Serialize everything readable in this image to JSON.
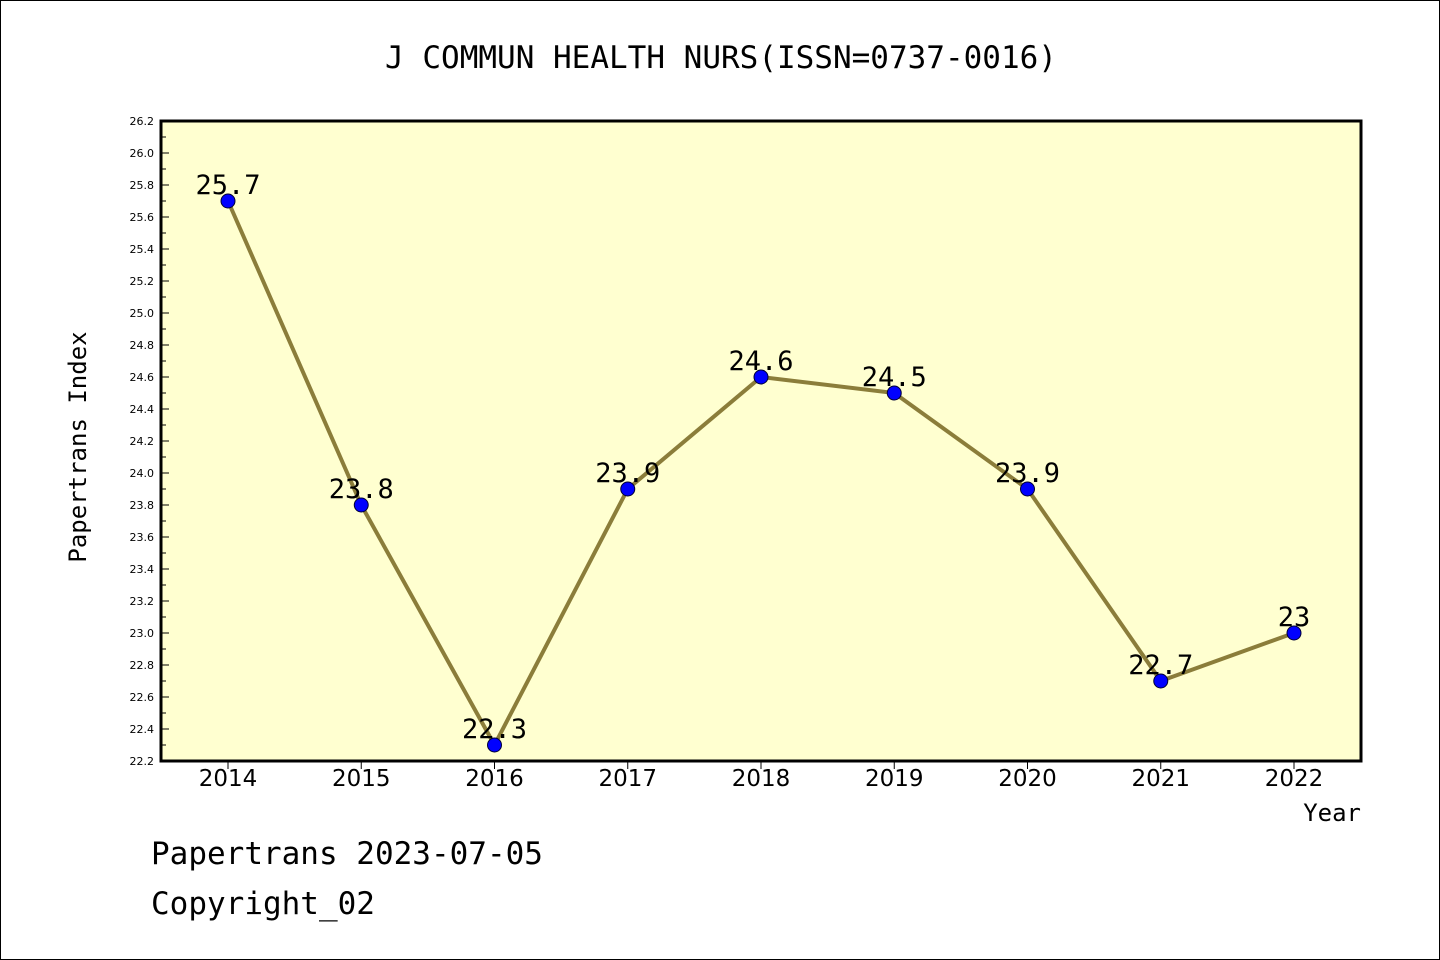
{
  "chart_data": {
    "type": "line",
    "title": "J COMMUN HEALTH NURS(ISSN=0737-0016)",
    "xlabel": "Year",
    "ylabel": "Papertrans Index",
    "categories": [
      "2014",
      "2015",
      "2016",
      "2017",
      "2018",
      "2019",
      "2020",
      "2021",
      "2022"
    ],
    "series": [
      {
        "values": [
          25.7,
          23.8,
          22.3,
          23.9,
          24.6,
          24.5,
          23.9,
          22.7,
          23
        ],
        "labels": [
          "25.7",
          "23.8",
          "22.3",
          "23.9",
          "24.6",
          "24.5",
          "23.9",
          "22.7",
          "23"
        ]
      }
    ],
    "ylim": [
      22.2,
      26.2
    ],
    "yticks": [
      "22.2",
      "22.4",
      "22.6",
      "22.8",
      "23.0",
      "23.2",
      "23.4",
      "23.6",
      "23.8",
      "24.0",
      "24.2",
      "24.4",
      "24.6",
      "24.8",
      "25.0",
      "25.2",
      "25.4",
      "25.6",
      "25.8",
      "26.0",
      "26.2"
    ],
    "grid": false,
    "legend": "none",
    "colors": {
      "plot_background": "#ffffd0",
      "line": "#8b7d3a",
      "marker": "#0000ff",
      "axis": "#000000"
    }
  },
  "footer": {
    "date_text": "Papertrans 2023-07-05",
    "copyright_text": "Copyright_02"
  }
}
